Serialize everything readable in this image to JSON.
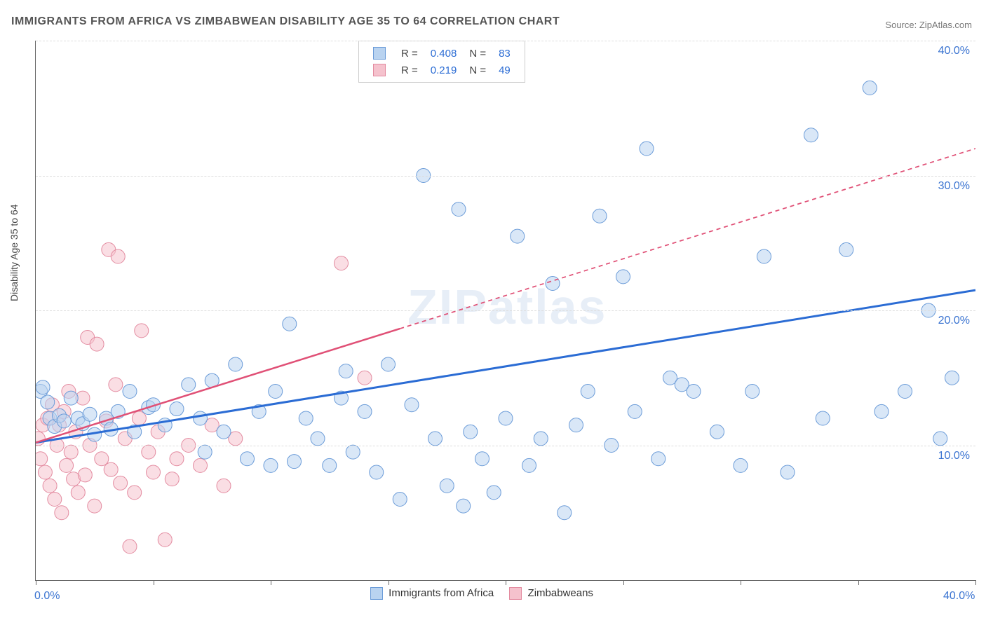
{
  "title": "IMMIGRANTS FROM AFRICA VS ZIMBABWEAN DISABILITY AGE 35 TO 64 CORRELATION CHART",
  "source_label": "Source:",
  "source_name": "ZipAtlas.com",
  "ylabel": "Disability Age 35 to 64",
  "watermark": "ZIPatlas",
  "xlim": [
    0,
    40
  ],
  "ylim": [
    0,
    40
  ],
  "yticks": [
    10,
    20,
    30,
    40
  ],
  "ytick_labels": [
    "10.0%",
    "20.0%",
    "30.0%",
    "40.0%"
  ],
  "xticks": [
    0,
    5,
    10,
    15,
    20,
    25,
    30,
    35,
    40
  ],
  "xtick_labels_shown": {
    "0": "0.0%",
    "40": "40.0%"
  },
  "series": [
    {
      "name": "Immigrants from Africa",
      "color_fill": "#b9d3f0",
      "color_stroke": "#6a9bd8",
      "trend_color": "#2b6cd4",
      "trend_width": 3,
      "trend_dash": "",
      "R_value": "0.408",
      "N_value": "83",
      "trend": {
        "x1": 0,
        "y1": 10.2,
        "x2": 40,
        "y2": 21.5
      },
      "points": [
        [
          0.2,
          14.0
        ],
        [
          0.3,
          14.3
        ],
        [
          0.5,
          13.2
        ],
        [
          0.6,
          12.0
        ],
        [
          0.8,
          11.4
        ],
        [
          1.0,
          12.2
        ],
        [
          1.2,
          11.8
        ],
        [
          1.5,
          13.5
        ],
        [
          1.8,
          12.0
        ],
        [
          2.0,
          11.6
        ],
        [
          2.3,
          12.3
        ],
        [
          2.5,
          10.8
        ],
        [
          3.0,
          12.0
        ],
        [
          3.2,
          11.2
        ],
        [
          3.5,
          12.5
        ],
        [
          4.0,
          14.0
        ],
        [
          4.2,
          11.0
        ],
        [
          4.8,
          12.8
        ],
        [
          5.0,
          13.0
        ],
        [
          5.5,
          11.5
        ],
        [
          6.0,
          12.7
        ],
        [
          6.5,
          14.5
        ],
        [
          7.0,
          12.0
        ],
        [
          7.2,
          9.5
        ],
        [
          7.5,
          14.8
        ],
        [
          8.0,
          11.0
        ],
        [
          8.5,
          16.0
        ],
        [
          9.0,
          9.0
        ],
        [
          9.5,
          12.5
        ],
        [
          10.0,
          8.5
        ],
        [
          10.2,
          14.0
        ],
        [
          10.8,
          19.0
        ],
        [
          11.0,
          8.8
        ],
        [
          11.5,
          12.0
        ],
        [
          12.0,
          10.5
        ],
        [
          12.5,
          8.5
        ],
        [
          13.0,
          13.5
        ],
        [
          13.2,
          15.5
        ],
        [
          13.5,
          9.5
        ],
        [
          14.0,
          12.5
        ],
        [
          14.5,
          8.0
        ],
        [
          15.0,
          16.0
        ],
        [
          15.5,
          6.0
        ],
        [
          16.0,
          13.0
        ],
        [
          16.5,
          30.0
        ],
        [
          17.0,
          10.5
        ],
        [
          17.5,
          7.0
        ],
        [
          18.0,
          27.5
        ],
        [
          18.2,
          5.5
        ],
        [
          18.5,
          11.0
        ],
        [
          19.0,
          9.0
        ],
        [
          19.5,
          6.5
        ],
        [
          20.0,
          12.0
        ],
        [
          20.5,
          25.5
        ],
        [
          21.0,
          8.5
        ],
        [
          21.5,
          10.5
        ],
        [
          22.0,
          22.0
        ],
        [
          22.5,
          5.0
        ],
        [
          23.0,
          11.5
        ],
        [
          23.5,
          14.0
        ],
        [
          24.0,
          27.0
        ],
        [
          24.5,
          10.0
        ],
        [
          25.0,
          22.5
        ],
        [
          25.5,
          12.5
        ],
        [
          26.0,
          32.0
        ],
        [
          26.5,
          9.0
        ],
        [
          27.0,
          15.0
        ],
        [
          27.5,
          14.5
        ],
        [
          28.0,
          14.0
        ],
        [
          29.0,
          11.0
        ],
        [
          30.0,
          8.5
        ],
        [
          30.5,
          14.0
        ],
        [
          31.0,
          24.0
        ],
        [
          32.0,
          8.0
        ],
        [
          33.0,
          33.0
        ],
        [
          33.5,
          12.0
        ],
        [
          34.5,
          24.5
        ],
        [
          35.5,
          36.5
        ],
        [
          36.0,
          12.5
        ],
        [
          37.0,
          14.0
        ],
        [
          38.0,
          20.0
        ],
        [
          38.5,
          10.5
        ],
        [
          39.0,
          15.0
        ]
      ]
    },
    {
      "name": "Zimbabweans",
      "color_fill": "#f5c2cd",
      "color_stroke": "#e38ba0",
      "trend_color": "#e05076",
      "trend_width": 2.5,
      "trend_dash": "6,5",
      "trend_solid_until_x": 15.5,
      "R_value": "0.219",
      "N_value": "49",
      "trend": {
        "x1": 0,
        "y1": 10.2,
        "x2": 40,
        "y2": 32.0
      },
      "points": [
        [
          0.1,
          10.5
        ],
        [
          0.2,
          9.0
        ],
        [
          0.3,
          11.5
        ],
        [
          0.4,
          8.0
        ],
        [
          0.5,
          12.0
        ],
        [
          0.6,
          7.0
        ],
        [
          0.7,
          13.0
        ],
        [
          0.8,
          6.0
        ],
        [
          0.9,
          10.0
        ],
        [
          1.0,
          11.5
        ],
        [
          1.1,
          5.0
        ],
        [
          1.2,
          12.5
        ],
        [
          1.3,
          8.5
        ],
        [
          1.4,
          14.0
        ],
        [
          1.5,
          9.5
        ],
        [
          1.6,
          7.5
        ],
        [
          1.7,
          11.0
        ],
        [
          1.8,
          6.5
        ],
        [
          2.0,
          13.5
        ],
        [
          2.1,
          7.8
        ],
        [
          2.2,
          18.0
        ],
        [
          2.3,
          10.0
        ],
        [
          2.5,
          5.5
        ],
        [
          2.6,
          17.5
        ],
        [
          2.8,
          9.0
        ],
        [
          3.0,
          11.8
        ],
        [
          3.1,
          24.5
        ],
        [
          3.2,
          8.2
        ],
        [
          3.4,
          14.5
        ],
        [
          3.5,
          24.0
        ],
        [
          3.6,
          7.2
        ],
        [
          3.8,
          10.5
        ],
        [
          4.0,
          2.5
        ],
        [
          4.2,
          6.5
        ],
        [
          4.4,
          12.0
        ],
        [
          4.5,
          18.5
        ],
        [
          4.8,
          9.5
        ],
        [
          5.0,
          8.0
        ],
        [
          5.2,
          11.0
        ],
        [
          5.5,
          3.0
        ],
        [
          5.8,
          7.5
        ],
        [
          6.0,
          9.0
        ],
        [
          6.5,
          10.0
        ],
        [
          7.0,
          8.5
        ],
        [
          7.5,
          11.5
        ],
        [
          8.0,
          7.0
        ],
        [
          8.5,
          10.5
        ],
        [
          13.0,
          23.5
        ],
        [
          14.0,
          15.0
        ]
      ]
    }
  ],
  "marker_radius": 10,
  "marker_fill_opacity": 0.55,
  "background_color": "#ffffff",
  "grid_color": "#dddddd",
  "axis_color": "#666666",
  "tick_font_color": "#3b74d1",
  "legend_value_color": "#2b6cd4"
}
